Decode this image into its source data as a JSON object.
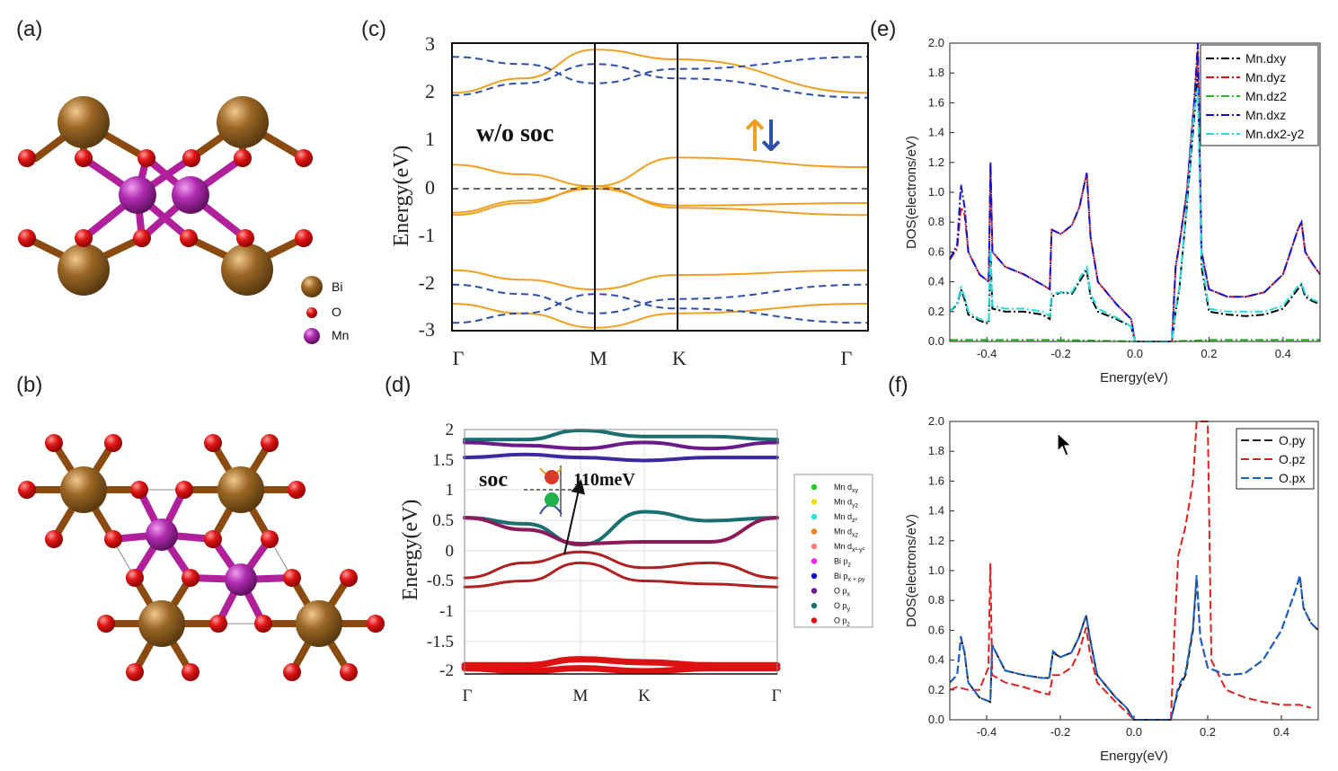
{
  "panels": {
    "a": {
      "label": "(a)",
      "legend": [
        {
          "name": "Bi",
          "color": "#8a5a1f"
        },
        {
          "name": "O",
          "color": "#dd1111"
        },
        {
          "name": "Mn",
          "color": "#a0209a"
        }
      ]
    },
    "b": {
      "label": "(b)"
    },
    "c": {
      "label": "(c)",
      "annotation": "w/o soc",
      "up_arrow": "↑",
      "down_arrow": "↓",
      "ylabel": "Energy(eV)",
      "yticks": [
        "3",
        "2",
        "1",
        "0",
        "-1",
        "-2",
        "-3"
      ],
      "xticks": [
        "Γ",
        "M",
        "K",
        "Γ"
      ]
    },
    "d": {
      "label": "(d)",
      "annotation": "soc",
      "gap": "110meV",
      "ylabel": "Energy(eV)",
      "yticks": [
        "2",
        "1.5",
        "1",
        "0.5",
        "0",
        "-0.5",
        "-1",
        "-1.5",
        "-2"
      ],
      "xticks": [
        "Γ",
        "M",
        "K",
        "Γ"
      ],
      "legend": [
        {
          "name": "Mn d",
          "sub": "xy",
          "color": "#22cc22"
        },
        {
          "name": "Mn d",
          "sub": "yz",
          "color": "#eedd11"
        },
        {
          "name": "Mn d",
          "sub": "z²",
          "color": "#33dddd"
        },
        {
          "name": "Mn d",
          "sub": "xz",
          "color": "#f08020"
        },
        {
          "name": "Mn d",
          "sub": "x²-y²",
          "color": "#f08080"
        },
        {
          "name": "Bi p",
          "sub": "z",
          "color": "#ee22ee"
        },
        {
          "name": "Bi p",
          "sub": "x + py",
          "color": "#1111cc"
        },
        {
          "name": "O p",
          "sub": "x",
          "color": "#6a1a8a"
        },
        {
          "name": "O p",
          "sub": "y",
          "color": "#1a7070"
        },
        {
          "name": "O p",
          "sub": "z",
          "color": "#dd1111"
        }
      ]
    },
    "e": {
      "label": "(e)",
      "ylabel": "DOS(electrons/eV)",
      "xlabel": "Energy(eV)",
      "yticks": [
        "2.0",
        "1.8",
        "1.6",
        "1.4",
        "1.2",
        "1.0",
        "0.8",
        "0.6",
        "0.4",
        "0.2",
        "0.0"
      ],
      "xticks": [
        "-0.4",
        "-0.2",
        "0.0",
        "0.2",
        "0.4"
      ]
    },
    "f": {
      "label": "(f)",
      "ylabel": "DOS(electrons/eV)",
      "xlabel": "Energy(eV)",
      "yticks": [
        "2.0",
        "1.8",
        "1.6",
        "1.4",
        "1.2",
        "1.0",
        "0.8",
        "0.6",
        "0.4",
        "0.2",
        "0.0"
      ],
      "xticks": [
        "-0.4",
        "-0.2",
        "0.0",
        "0.2",
        "0.4"
      ]
    }
  },
  "chart_data": [
    {
      "type": "line",
      "panel": "e",
      "title": "",
      "xlabel": "Energy(eV)",
      "ylabel": "DOS(electrons/eV)",
      "xlim": [
        -0.5,
        0.5
      ],
      "ylim": [
        0.0,
        2.0
      ],
      "legend_position": "top-right",
      "series": [
        {
          "name": "Mn.dxy",
          "color": "#000000",
          "x": [
            -0.5,
            -0.48,
            -0.47,
            -0.46,
            -0.45,
            -0.42,
            -0.395,
            -0.39,
            -0.385,
            -0.35,
            -0.3,
            -0.25,
            -0.23,
            -0.225,
            -0.2,
            -0.17,
            -0.15,
            -0.13,
            -0.12,
            -0.1,
            -0.05,
            -0.01,
            0.0,
            0.1,
            0.11,
            0.12,
            0.14,
            0.16,
            0.17,
            0.18,
            0.2,
            0.25,
            0.3,
            0.35,
            0.4,
            0.44,
            0.45,
            0.46,
            0.48,
            0.5
          ],
          "y": [
            0.2,
            0.25,
            0.35,
            0.28,
            0.18,
            0.14,
            0.12,
            0.6,
            0.22,
            0.2,
            0.2,
            0.18,
            0.15,
            0.3,
            0.33,
            0.32,
            0.4,
            0.48,
            0.3,
            0.2,
            0.15,
            0.1,
            0.0,
            0.0,
            0.2,
            0.35,
            0.9,
            1.5,
            1.8,
            0.5,
            0.2,
            0.18,
            0.17,
            0.18,
            0.22,
            0.35,
            0.38,
            0.3,
            0.27,
            0.25
          ]
        },
        {
          "name": "Mn.dyz",
          "color": "#dd1111",
          "x": [
            -0.5,
            -0.48,
            -0.47,
            -0.46,
            -0.45,
            -0.42,
            -0.395,
            -0.39,
            -0.385,
            -0.35,
            -0.3,
            -0.25,
            -0.23,
            -0.225,
            -0.2,
            -0.17,
            -0.15,
            -0.13,
            -0.12,
            -0.1,
            -0.05,
            -0.01,
            0.0,
            0.1,
            0.11,
            0.12,
            0.14,
            0.16,
            0.17,
            0.18,
            0.2,
            0.25,
            0.3,
            0.35,
            0.4,
            0.44,
            0.45,
            0.46,
            0.48,
            0.5
          ],
          "y": [
            0.55,
            0.62,
            0.9,
            0.85,
            0.6,
            0.45,
            0.4,
            1.2,
            0.6,
            0.5,
            0.45,
            0.38,
            0.35,
            0.75,
            0.72,
            0.78,
            0.9,
            1.13,
            0.7,
            0.4,
            0.25,
            0.15,
            0.0,
            0.0,
            0.5,
            0.65,
            1.0,
            1.6,
            1.95,
            0.6,
            0.35,
            0.3,
            0.3,
            0.33,
            0.45,
            0.75,
            0.8,
            0.6,
            0.52,
            0.45
          ]
        },
        {
          "name": "Mn.dz2",
          "color": "#22bb22",
          "x": [
            -0.5,
            -0.4,
            -0.2,
            0.0,
            0.1,
            0.2,
            0.4,
            0.5
          ],
          "y": [
            0.01,
            0.01,
            0.01,
            0.0,
            0.0,
            0.01,
            0.01,
            0.01
          ]
        },
        {
          "name": "Mn.dxz",
          "color": "#1111cc",
          "x": [
            -0.5,
            -0.48,
            -0.47,
            -0.46,
            -0.45,
            -0.42,
            -0.395,
            -0.39,
            -0.385,
            -0.35,
            -0.3,
            -0.25,
            -0.23,
            -0.225,
            -0.2,
            -0.17,
            -0.15,
            -0.13,
            -0.12,
            -0.1,
            -0.05,
            -0.01,
            0.0,
            0.1,
            0.11,
            0.12,
            0.14,
            0.16,
            0.17,
            0.18,
            0.2,
            0.25,
            0.3,
            0.35,
            0.4,
            0.44,
            0.45,
            0.46,
            0.48,
            0.5
          ],
          "y": [
            0.55,
            0.65,
            1.05,
            0.9,
            0.6,
            0.45,
            0.4,
            1.2,
            0.6,
            0.5,
            0.45,
            0.38,
            0.35,
            0.75,
            0.72,
            0.78,
            0.9,
            1.13,
            0.7,
            0.4,
            0.25,
            0.15,
            0.0,
            0.0,
            0.5,
            0.65,
            1.0,
            1.6,
            2.0,
            0.6,
            0.35,
            0.3,
            0.3,
            0.33,
            0.45,
            0.75,
            0.8,
            0.6,
            0.52,
            0.45
          ]
        },
        {
          "name": "Mn.dx2-y2",
          "color": "#22dddd",
          "x": [
            -0.5,
            -0.48,
            -0.47,
            -0.46,
            -0.45,
            -0.42,
            -0.395,
            -0.39,
            -0.385,
            -0.35,
            -0.3,
            -0.25,
            -0.23,
            -0.225,
            -0.2,
            -0.17,
            -0.15,
            -0.13,
            -0.12,
            -0.1,
            -0.05,
            -0.01,
            0.0,
            0.1,
            0.11,
            0.12,
            0.14,
            0.16,
            0.17,
            0.18,
            0.2,
            0.25,
            0.3,
            0.35,
            0.4,
            0.44,
            0.45,
            0.46,
            0.48,
            0.5
          ],
          "y": [
            0.2,
            0.26,
            0.36,
            0.3,
            0.2,
            0.15,
            0.13,
            0.62,
            0.24,
            0.22,
            0.22,
            0.2,
            0.17,
            0.32,
            0.33,
            0.33,
            0.42,
            0.5,
            0.32,
            0.22,
            0.16,
            0.1,
            0.0,
            0.0,
            0.22,
            0.36,
            0.92,
            1.55,
            1.7,
            0.55,
            0.22,
            0.2,
            0.2,
            0.2,
            0.24,
            0.37,
            0.39,
            0.32,
            0.28,
            0.26
          ]
        }
      ]
    },
    {
      "type": "line",
      "panel": "f",
      "title": "",
      "xlabel": "Energy(eV)",
      "ylabel": "DOS(electrons/eV)",
      "xlim": [
        -0.5,
        0.5
      ],
      "ylim": [
        0.0,
        2.0
      ],
      "legend_position": "top-right",
      "series": [
        {
          "name": "O.py",
          "color": "#222222",
          "x": [
            -0.5,
            -0.48,
            -0.47,
            -0.46,
            -0.45,
            -0.42,
            -0.39,
            -0.385,
            -0.35,
            -0.3,
            -0.25,
            -0.23,
            -0.22,
            -0.2,
            -0.17,
            -0.15,
            -0.13,
            -0.12,
            -0.1,
            -0.05,
            -0.02,
            0.0,
            0.1,
            0.12,
            0.14,
            0.16,
            0.17,
            0.18,
            0.2,
            0.25,
            0.3,
            0.35,
            0.4,
            0.44,
            0.45,
            0.46,
            0.48,
            0.5
          ],
          "y": [
            0.25,
            0.3,
            0.55,
            0.45,
            0.25,
            0.15,
            0.12,
            0.5,
            0.33,
            0.3,
            0.28,
            0.28,
            0.45,
            0.42,
            0.45,
            0.55,
            0.7,
            0.55,
            0.3,
            0.15,
            0.08,
            0.0,
            0.0,
            0.2,
            0.3,
            0.6,
            0.95,
            0.55,
            0.35,
            0.3,
            0.31,
            0.4,
            0.6,
            0.88,
            0.96,
            0.75,
            0.65,
            0.6
          ]
        },
        {
          "name": "O.pz",
          "color": "#dd2222",
          "x": [
            -0.5,
            -0.48,
            -0.45,
            -0.42,
            -0.395,
            -0.39,
            -0.385,
            -0.35,
            -0.3,
            -0.25,
            -0.23,
            -0.22,
            -0.2,
            -0.17,
            -0.15,
            -0.13,
            -0.12,
            -0.1,
            -0.05,
            -0.02,
            0.0,
            0.1,
            0.11,
            0.12,
            0.14,
            0.16,
            0.17,
            0.18,
            0.2,
            0.21,
            0.25,
            0.3,
            0.35,
            0.4,
            0.45,
            0.48
          ],
          "y": [
            0.2,
            0.22,
            0.2,
            0.2,
            0.35,
            1.05,
            0.3,
            0.25,
            0.22,
            0.18,
            0.17,
            0.3,
            0.3,
            0.35,
            0.45,
            0.62,
            0.45,
            0.25,
            0.12,
            0.05,
            0.0,
            0.0,
            0.6,
            1.1,
            1.3,
            1.6,
            2.0,
            2.0,
            2.0,
            0.4,
            0.2,
            0.15,
            0.12,
            0.1,
            0.1,
            0.08
          ]
        },
        {
          "name": "O.px",
          "color": "#1a5fcc",
          "x": [
            -0.5,
            -0.48,
            -0.47,
            -0.46,
            -0.45,
            -0.42,
            -0.39,
            -0.385,
            -0.35,
            -0.3,
            -0.25,
            -0.23,
            -0.22,
            -0.2,
            -0.17,
            -0.15,
            -0.13,
            -0.12,
            -0.1,
            -0.05,
            -0.02,
            0.0,
            0.1,
            0.12,
            0.14,
            0.16,
            0.17,
            0.18,
            0.2,
            0.25,
            0.3,
            0.35,
            0.4,
            0.44,
            0.45,
            0.46,
            0.48,
            0.5
          ],
          "y": [
            0.25,
            0.3,
            0.56,
            0.45,
            0.25,
            0.15,
            0.12,
            0.5,
            0.33,
            0.3,
            0.28,
            0.28,
            0.46,
            0.42,
            0.45,
            0.55,
            0.7,
            0.55,
            0.3,
            0.15,
            0.08,
            0.0,
            0.0,
            0.22,
            0.32,
            0.62,
            0.97,
            0.55,
            0.35,
            0.3,
            0.31,
            0.4,
            0.6,
            0.88,
            0.97,
            0.75,
            0.65,
            0.6
          ]
        }
      ]
    },
    {
      "type": "line",
      "panel": "c",
      "title": "w/o soc",
      "xlabel": "",
      "ylabel": "Energy(eV)",
      "ylim": [
        -3,
        3
      ],
      "categories": [
        "Γ",
        "M",
        "K",
        "Γ"
      ],
      "series": [
        {
          "name": "spin up",
          "color": "#f0a020",
          "style": "solid",
          "bands": [
            [
              0.5,
              0.3,
              0.05,
              0.65,
              0.45
            ],
            [
              -0.55,
              -0.3,
              0.05,
              -0.4,
              -0.55
            ],
            [
              -0.5,
              -0.25,
              0.0,
              -0.35,
              -0.3
            ],
            [
              2.0,
              2.3,
              2.9,
              2.7,
              2.0
            ],
            [
              -1.7,
              -1.9,
              -2.1,
              -1.8,
              -1.7
            ],
            [
              -2.4,
              -2.6,
              -2.9,
              -2.6,
              -2.4
            ]
          ]
        },
        {
          "name": "spin down",
          "color": "#2e4fa6",
          "style": "dashed",
          "bands": [
            [
              2.75,
              2.6,
              2.2,
              2.5,
              2.75
            ],
            [
              1.95,
              2.2,
              2.6,
              2.3,
              1.9
            ],
            [
              -2.0,
              -2.2,
              -2.6,
              -2.3,
              -2.0
            ],
            [
              -2.8,
              -2.6,
              -2.2,
              -2.5,
              -2.8
            ]
          ]
        }
      ]
    }
  ]
}
